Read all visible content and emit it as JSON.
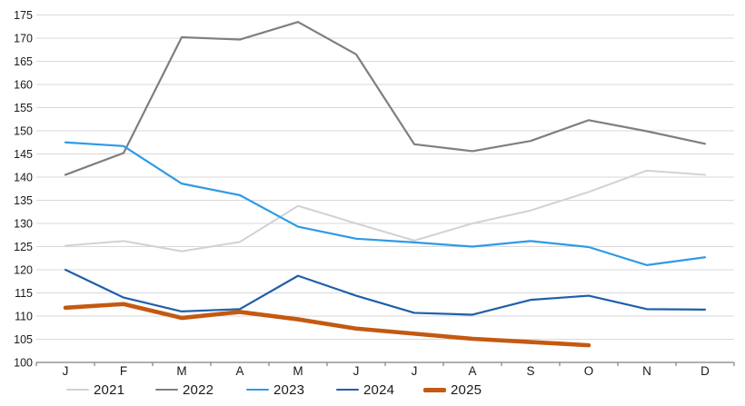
{
  "chart_data": {
    "type": "line",
    "title": "",
    "xlabel": "",
    "ylabel": "",
    "categories": [
      "J",
      "F",
      "M",
      "A",
      "M",
      "J",
      "J",
      "A",
      "S",
      "O",
      "N",
      "D"
    ],
    "series": [
      {
        "name": "2021",
        "color": "#d2d2d2",
        "stroke_width": 2,
        "values": [
          125.2,
          126.2,
          124.0,
          126.0,
          133.8,
          130.0,
          126.3,
          130.0,
          132.8,
          136.8,
          141.4,
          140.5
        ]
      },
      {
        "name": "2022",
        "color": "#7f7f7f",
        "stroke_width": 2.2,
        "values": [
          140.5,
          145.2,
          170.2,
          169.7,
          173.5,
          166.5,
          147.1,
          145.6,
          147.8,
          152.3,
          149.9,
          147.2
        ]
      },
      {
        "name": "2023",
        "color": "#2e9be6",
        "stroke_width": 2.2,
        "values": [
          147.5,
          146.7,
          138.6,
          136.1,
          129.3,
          126.7,
          125.9,
          125.0,
          126.2,
          124.9,
          121.0,
          122.7
        ]
      },
      {
        "name": "2024",
        "color": "#1f5fa9",
        "stroke_width": 2.2,
        "values": [
          120.0,
          114.0,
          111.0,
          111.5,
          118.7,
          114.4,
          110.7,
          110.3,
          113.5,
          114.4,
          111.5,
          111.4
        ]
      },
      {
        "name": "2025",
        "color": "#c45911",
        "stroke_width": 4.6,
        "values": [
          111.8,
          112.6,
          109.6,
          110.9,
          109.3,
          107.3,
          106.2,
          105.1,
          104.4,
          103.7,
          null,
          null
        ]
      }
    ],
    "ylim": [
      100,
      175
    ],
    "ytick_step": 5,
    "ytick_labels": [
      "100",
      "105",
      "110",
      "115",
      "120",
      "125",
      "130",
      "135",
      "140",
      "145",
      "150",
      "155",
      "160",
      "165",
      "170",
      "175"
    ],
    "grid": true,
    "legend_position": "bottom",
    "legend_entries": [
      "2021",
      "2022",
      "2023",
      "2024",
      "2025"
    ]
  },
  "colors": {
    "background": "#ffffff",
    "gridline": "#d9d9d9",
    "axis_line": "#808080",
    "tick_text": "#1a1a1a"
  }
}
